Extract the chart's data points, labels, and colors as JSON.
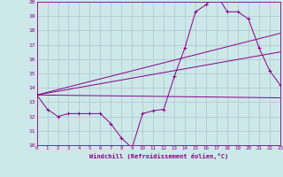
{
  "xlabel": "Windchill (Refroidissement éolien,°C)",
  "background_color": "#cce8e8",
  "grid_color": "#aabbcc",
  "line_color": "#880088",
  "axis_color": "#880088",
  "x_min": 0,
  "x_max": 23,
  "y_min": 10,
  "y_max": 20,
  "series1_x": [
    0,
    1,
    2,
    3,
    4,
    5,
    6,
    7,
    8,
    9,
    10,
    11,
    12,
    13,
    14,
    15,
    16,
    17,
    18,
    19,
    20,
    21,
    22,
    23
  ],
  "series1_y": [
    13.5,
    12.5,
    12.0,
    12.2,
    12.2,
    12.2,
    12.2,
    11.5,
    10.5,
    9.8,
    12.2,
    12.4,
    12.5,
    14.8,
    16.8,
    19.3,
    19.8,
    20.5,
    19.3,
    19.3,
    18.8,
    16.8,
    15.2,
    14.2
  ],
  "series2_x": [
    0,
    23
  ],
  "series2_y": [
    13.5,
    17.8
  ],
  "series3_x": [
    0,
    23
  ],
  "series3_y": [
    13.5,
    16.5
  ],
  "series4_x": [
    0,
    23
  ],
  "series4_y": [
    13.5,
    13.3
  ],
  "yticks": [
    10,
    11,
    12,
    13,
    14,
    15,
    16,
    17,
    18,
    19,
    20
  ],
  "xticks": [
    0,
    1,
    2,
    3,
    4,
    5,
    6,
    7,
    8,
    9,
    10,
    11,
    12,
    13,
    14,
    15,
    16,
    17,
    18,
    19,
    20,
    21,
    22,
    23
  ]
}
